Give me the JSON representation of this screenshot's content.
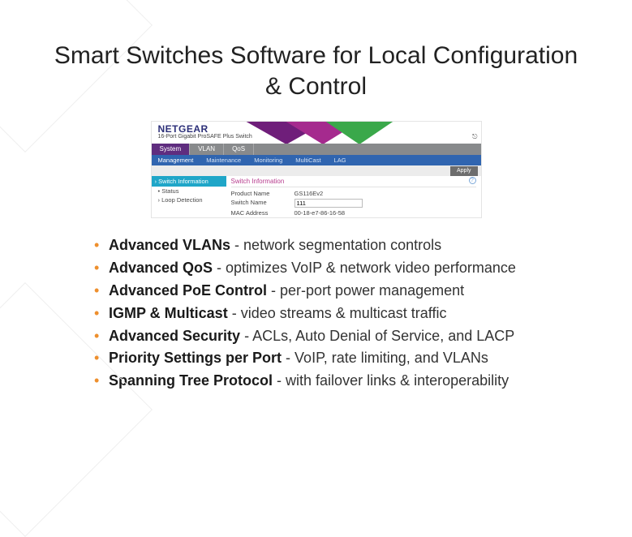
{
  "colors": {
    "bullet": "#ee8f2d",
    "brand": "#2c2f78",
    "brand_sub": "#444444",
    "tabs1_bg": "#888a8c",
    "tabs1_active": "#5f2d7f",
    "tabs2_bg": "#3065b0",
    "side_head": "#1fa6c8",
    "content_head": "#b73c8e"
  },
  "title": "Smart Switches Software for Local Configuration & Control",
  "screenshot": {
    "brand": "NETGEAR",
    "brand_sub": "16-Port Gigabit ProSAFE Plus Switch",
    "logout_icon": "⎋",
    "tabs1": [
      "System",
      "VLAN",
      "QoS"
    ],
    "tabs1_active_index": 0,
    "tabs2": [
      "Management",
      "Maintenance",
      "Monitoring",
      "MultiCast",
      "LAG"
    ],
    "tabs2_active_index": 0,
    "apply_label": "Apply",
    "sidebar": {
      "header": "Switch Information",
      "items": [
        "Status",
        "Loop Detection"
      ]
    },
    "section_title": "Switch Information",
    "help_glyph": "?",
    "fields": {
      "product_name": {
        "label": "Product Name",
        "value": "GS116Ev2"
      },
      "switch_name": {
        "label": "Switch Name",
        "value": "111"
      },
      "mac_address": {
        "label": "MAC Address",
        "value": "00-18-e7-86-16-58"
      }
    }
  },
  "features": [
    {
      "name": "Advanced VLANs",
      "desc": "network segmentation controls"
    },
    {
      "name": "Advanced QoS",
      "desc": "optimizes VoIP & network video performance"
    },
    {
      "name": "Advanced PoE Control",
      "desc": "per-port power management"
    },
    {
      "name": "IGMP & Multicast",
      "desc": "video streams & multicast traffic"
    },
    {
      "name": "Advanced Security",
      "desc": "ACLs, Auto Denial of Service, and LACP"
    },
    {
      "name": "Priority Settings per Port",
      "desc": "VoIP, rate limiting, and VLANs"
    },
    {
      "name": "Spanning Tree Protocol",
      "desc": "with failover links & interoperability"
    }
  ]
}
